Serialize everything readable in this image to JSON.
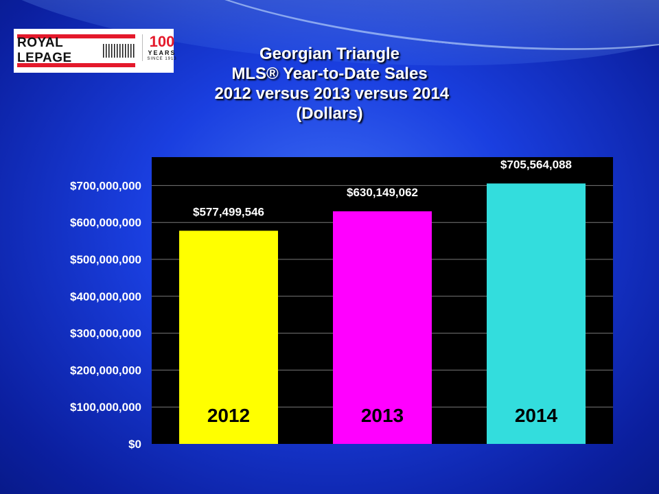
{
  "logo": {
    "brand": "ROYAL LEPAGE",
    "anniversary_number": "100",
    "anniversary_word": "YEARS",
    "anniversary_since": "SINCE 1913"
  },
  "title_lines": [
    "Georgian Triangle",
    "MLS® Year-to-Date Sales",
    " 2012 versus 2013 versus 2014",
    "(Dollars)"
  ],
  "chart_data": {
    "type": "bar",
    "categories": [
      "2012",
      "2013",
      "2014"
    ],
    "values": [
      577499546,
      630149062,
      705564088
    ],
    "data_labels": [
      "$577,499,546",
      "$630,149,062",
      "$705,564,088"
    ],
    "bar_colors": [
      "#ffff00",
      "#ff00ff",
      "#33dddd"
    ],
    "ylim": [
      0,
      750000000
    ],
    "yticks": [
      0,
      100000000,
      200000000,
      300000000,
      400000000,
      500000000,
      600000000,
      700000000
    ],
    "ytick_labels": [
      "$0",
      "$100,000,000",
      "$200,000,000",
      "$300,000,000",
      "$400,000,000",
      "$500,000,000",
      "$600,000,000",
      "$700,000,000"
    ],
    "grid": true,
    "plot_background": "#000000",
    "xlabel": "",
    "ylabel": ""
  }
}
